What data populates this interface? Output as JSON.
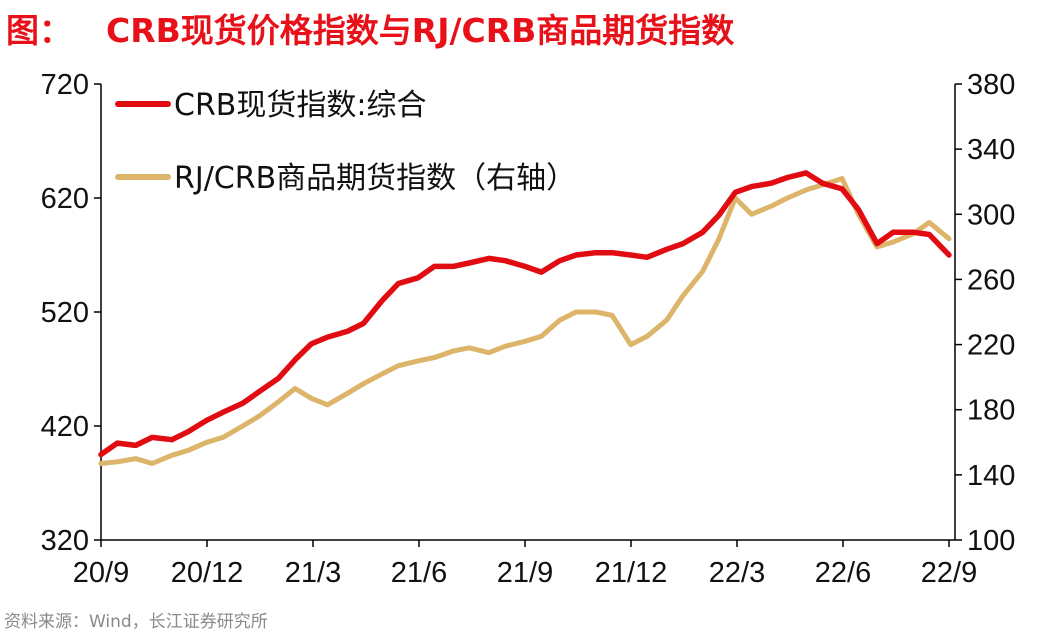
{
  "title": {
    "prefix": "图：",
    "text": "CRB现货价格指数与RJ/CRB商品期货指数"
  },
  "source": "资料来源：Wind，长江证券研究所",
  "chart_data": {
    "type": "line",
    "x_ticks": [
      "20/9",
      "20/12",
      "21/3",
      "21/6",
      "21/9",
      "21/12",
      "22/3",
      "22/6",
      "22/9"
    ],
    "y_left": {
      "min": 320,
      "max": 720,
      "ticks": [
        320,
        420,
        520,
        620,
        720
      ]
    },
    "y_right": {
      "min": 100,
      "max": 380,
      "ticks": [
        100,
        140,
        180,
        220,
        260,
        300,
        340,
        380
      ]
    },
    "grid": false,
    "legend_position": "top-left",
    "series": [
      {
        "name": "CRB现货指数:综合",
        "axis": "left",
        "color": "#e00c12",
        "x": [
          "2020-09-01",
          "2020-09-15",
          "2020-10-01",
          "2020-10-15",
          "2020-11-01",
          "2020-11-15",
          "2020-12-01",
          "2020-12-15",
          "2021-01-01",
          "2021-01-15",
          "2021-02-01",
          "2021-02-15",
          "2021-03-01",
          "2021-03-15",
          "2021-04-01",
          "2021-04-15",
          "2021-05-01",
          "2021-05-15",
          "2021-06-01",
          "2021-06-15",
          "2021-07-01",
          "2021-07-15",
          "2021-08-01",
          "2021-08-15",
          "2021-09-01",
          "2021-09-15",
          "2021-10-01",
          "2021-10-15",
          "2021-11-01",
          "2021-11-15",
          "2021-12-01",
          "2021-12-15",
          "2022-01-01",
          "2022-01-15",
          "2022-02-01",
          "2022-02-15",
          "2022-03-01",
          "2022-03-15",
          "2022-04-01",
          "2022-04-15",
          "2022-05-01",
          "2022-05-15",
          "2022-06-01",
          "2022-06-15",
          "2022-07-01",
          "2022-07-15",
          "2022-08-01",
          "2022-08-15",
          "2022-09-01"
        ],
        "values": [
          395,
          405,
          403,
          410,
          408,
          415,
          425,
          432,
          440,
          450,
          462,
          478,
          492,
          498,
          503,
          510,
          530,
          545,
          550,
          560,
          560,
          563,
          567,
          565,
          560,
          555,
          565,
          570,
          572,
          572,
          570,
          568,
          575,
          580,
          590,
          605,
          625,
          630,
          633,
          638,
          642,
          633,
          628,
          610,
          580,
          590,
          590,
          588,
          570
        ]
      },
      {
        "name": "RJ/CRB商品期货指数（右轴）",
        "axis": "right",
        "color": "#dcb46a",
        "x": [
          "2020-09-01",
          "2020-09-15",
          "2020-10-01",
          "2020-10-15",
          "2020-11-01",
          "2020-11-15",
          "2020-12-01",
          "2020-12-15",
          "2021-01-01",
          "2021-01-15",
          "2021-02-01",
          "2021-02-15",
          "2021-03-01",
          "2021-03-15",
          "2021-04-01",
          "2021-04-15",
          "2021-05-01",
          "2021-05-15",
          "2021-06-01",
          "2021-06-15",
          "2021-07-01",
          "2021-07-15",
          "2021-08-01",
          "2021-08-15",
          "2021-09-01",
          "2021-09-15",
          "2021-10-01",
          "2021-10-15",
          "2021-11-01",
          "2021-11-15",
          "2021-12-01",
          "2021-12-15",
          "2022-01-01",
          "2022-01-15",
          "2022-02-01",
          "2022-02-15",
          "2022-03-01",
          "2022-03-15",
          "2022-04-01",
          "2022-04-15",
          "2022-05-01",
          "2022-05-15",
          "2022-06-01",
          "2022-06-15",
          "2022-07-01",
          "2022-07-15",
          "2022-08-01",
          "2022-08-15",
          "2022-09-01"
        ],
        "values": [
          147,
          148,
          150,
          147,
          152,
          155,
          160,
          163,
          170,
          176,
          185,
          193,
          187,
          183,
          190,
          196,
          202,
          207,
          210,
          212,
          216,
          218,
          215,
          219,
          222,
          225,
          235,
          240,
          240,
          238,
          220,
          225,
          235,
          250,
          265,
          285,
          310,
          300,
          305,
          310,
          315,
          318,
          322,
          300,
          280,
          283,
          288,
          295,
          285
        ]
      }
    ]
  }
}
